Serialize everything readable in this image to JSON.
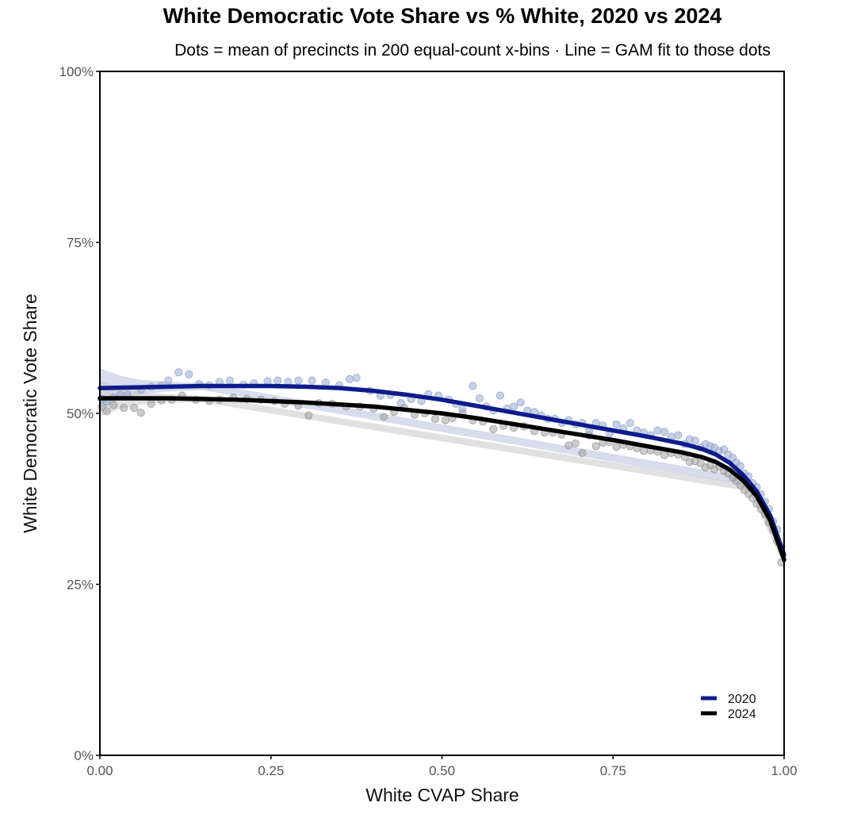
{
  "chart_data": {
    "type": "scatter",
    "title": "White Democratic Vote Share vs % White, 2020 vs 2024",
    "subtitle": "Dots = mean of precincts in 200 equal-count x-bins · Line = GAM fit to those dots",
    "xlabel": "White CVAP Share",
    "ylabel": "White Democratic Vote Share",
    "xlim": [
      0,
      1
    ],
    "ylim": [
      0,
      1
    ],
    "x_ticks": [
      {
        "value": 0,
        "label": "0.00"
      },
      {
        "value": 0.25,
        "label": "0.25"
      },
      {
        "value": 0.5,
        "label": "0.50"
      },
      {
        "value": 0.75,
        "label": "0.75"
      },
      {
        "value": 1,
        "label": "1.00"
      }
    ],
    "y_ticks": [
      {
        "value": 0,
        "label": "0%"
      },
      {
        "value": 0.25,
        "label": "25%"
      },
      {
        "value": 0.5,
        "label": "50%"
      },
      {
        "value": 0.75,
        "label": "75%"
      },
      {
        "value": 1,
        "label": "100%"
      }
    ],
    "grid": false,
    "legend_position": "bottom-right",
    "series": [
      {
        "name": "2020",
        "color": "#0d1c8c",
        "point_color": "#8fa3cc",
        "band_color": "#b9bfdc",
        "fit": [
          [
            0.0,
            0.537
          ],
          [
            0.05,
            0.538
          ],
          [
            0.1,
            0.539
          ],
          [
            0.15,
            0.54
          ],
          [
            0.2,
            0.54
          ],
          [
            0.25,
            0.54
          ],
          [
            0.3,
            0.539
          ],
          [
            0.35,
            0.537
          ],
          [
            0.4,
            0.533
          ],
          [
            0.45,
            0.527
          ],
          [
            0.5,
            0.52
          ],
          [
            0.55,
            0.511
          ],
          [
            0.6,
            0.502
          ],
          [
            0.65,
            0.493
          ],
          [
            0.7,
            0.484
          ],
          [
            0.75,
            0.475
          ],
          [
            0.8,
            0.466
          ],
          [
            0.85,
            0.456
          ],
          [
            0.88,
            0.448
          ],
          [
            0.9,
            0.44
          ],
          [
            0.92,
            0.428
          ],
          [
            0.94,
            0.41
          ],
          [
            0.96,
            0.386
          ],
          [
            0.98,
            0.35
          ],
          [
            1.0,
            0.293
          ]
        ],
        "band": [
          [
            0.0,
            0.509,
            0.566
          ],
          [
            0.03,
            0.521,
            0.555
          ],
          [
            0.06,
            0.528,
            0.549
          ],
          [
            0.1,
            0.532,
            0.546
          ],
          [
            0.15,
            0.534,
            0.545
          ],
          [
            0.95,
            0.394,
            0.406
          ],
          [
            1.0,
            0.284,
            0.302
          ]
        ],
        "points": [
          [
            0.003,
            0.521
          ],
          [
            0.01,
            0.517
          ],
          [
            0.02,
            0.523
          ],
          [
            0.03,
            0.527
          ],
          [
            0.04,
            0.527
          ],
          [
            0.06,
            0.534
          ],
          [
            0.075,
            0.539
          ],
          [
            0.09,
            0.541
          ],
          [
            0.1,
            0.548
          ],
          [
            0.115,
            0.56
          ],
          [
            0.13,
            0.557
          ],
          [
            0.145,
            0.543
          ],
          [
            0.16,
            0.541
          ],
          [
            0.175,
            0.546
          ],
          [
            0.19,
            0.548
          ],
          [
            0.21,
            0.542
          ],
          [
            0.225,
            0.544
          ],
          [
            0.245,
            0.547
          ],
          [
            0.26,
            0.548
          ],
          [
            0.275,
            0.546
          ],
          [
            0.29,
            0.548
          ],
          [
            0.31,
            0.548
          ],
          [
            0.33,
            0.545
          ],
          [
            0.35,
            0.541
          ],
          [
            0.365,
            0.55
          ],
          [
            0.375,
            0.552
          ],
          [
            0.395,
            0.533
          ],
          [
            0.41,
            0.526
          ],
          [
            0.425,
            0.527
          ],
          [
            0.44,
            0.515
          ],
          [
            0.455,
            0.521
          ],
          [
            0.47,
            0.518
          ],
          [
            0.48,
            0.528
          ],
          [
            0.495,
            0.526
          ],
          [
            0.51,
            0.52
          ],
          [
            0.52,
            0.514
          ],
          [
            0.53,
            0.507
          ],
          [
            0.545,
            0.54
          ],
          [
            0.555,
            0.522
          ],
          [
            0.565,
            0.51
          ],
          [
            0.575,
            0.504
          ],
          [
            0.585,
            0.526
          ],
          [
            0.595,
            0.507
          ],
          [
            0.605,
            0.51
          ],
          [
            0.615,
            0.516
          ],
          [
            0.625,
            0.504
          ],
          [
            0.635,
            0.502
          ],
          [
            0.645,
            0.497
          ],
          [
            0.655,
            0.492
          ],
          [
            0.665,
            0.492
          ],
          [
            0.675,
            0.486
          ],
          [
            0.685,
            0.49
          ],
          [
            0.695,
            0.484
          ],
          [
            0.705,
            0.486
          ],
          [
            0.715,
            0.474
          ],
          [
            0.725,
            0.486
          ],
          [
            0.735,
            0.482
          ],
          [
            0.745,
            0.471
          ],
          [
            0.755,
            0.484
          ],
          [
            0.765,
            0.478
          ],
          [
            0.775,
            0.486
          ],
          [
            0.785,
            0.475
          ],
          [
            0.795,
            0.472
          ],
          [
            0.805,
            0.468
          ],
          [
            0.815,
            0.475
          ],
          [
            0.825,
            0.473
          ],
          [
            0.835,
            0.466
          ],
          [
            0.845,
            0.468
          ],
          [
            0.855,
            0.455
          ],
          [
            0.862,
            0.462
          ],
          [
            0.87,
            0.46
          ],
          [
            0.878,
            0.45
          ],
          [
            0.885,
            0.455
          ],
          [
            0.892,
            0.452
          ],
          [
            0.898,
            0.45
          ],
          [
            0.905,
            0.445
          ],
          [
            0.912,
            0.447
          ],
          [
            0.918,
            0.44
          ],
          [
            0.925,
            0.435
          ],
          [
            0.93,
            0.428
          ],
          [
            0.936,
            0.423
          ],
          [
            0.942,
            0.412
          ],
          [
            0.948,
            0.408
          ],
          [
            0.954,
            0.398
          ],
          [
            0.96,
            0.392
          ],
          [
            0.966,
            0.382
          ],
          [
            0.972,
            0.371
          ],
          [
            0.978,
            0.36
          ],
          [
            0.984,
            0.342
          ],
          [
            0.99,
            0.33
          ],
          [
            0.996,
            0.305
          ]
        ]
      },
      {
        "name": "2024",
        "color": "#000000",
        "point_color": "#9a9a9a",
        "band_color": "#c8c8c8",
        "fit": [
          [
            0.0,
            0.522
          ],
          [
            0.05,
            0.522
          ],
          [
            0.1,
            0.522
          ],
          [
            0.15,
            0.521
          ],
          [
            0.2,
            0.52
          ],
          [
            0.25,
            0.518
          ],
          [
            0.3,
            0.516
          ],
          [
            0.35,
            0.513
          ],
          [
            0.4,
            0.51
          ],
          [
            0.45,
            0.505
          ],
          [
            0.5,
            0.5
          ],
          [
            0.55,
            0.493
          ],
          [
            0.6,
            0.485
          ],
          [
            0.65,
            0.477
          ],
          [
            0.7,
            0.469
          ],
          [
            0.75,
            0.461
          ],
          [
            0.8,
            0.452
          ],
          [
            0.85,
            0.443
          ],
          [
            0.88,
            0.436
          ],
          [
            0.9,
            0.429
          ],
          [
            0.92,
            0.418
          ],
          [
            0.94,
            0.402
          ],
          [
            0.96,
            0.379
          ],
          [
            0.98,
            0.343
          ],
          [
            1.0,
            0.286
          ]
        ],
        "band": [
          [
            0.0,
            0.496,
            0.548
          ],
          [
            0.03,
            0.507,
            0.537
          ],
          [
            0.06,
            0.513,
            0.531
          ],
          [
            0.1,
            0.516,
            0.528
          ],
          [
            0.15,
            0.516,
            0.526
          ],
          [
            0.95,
            0.386,
            0.396
          ],
          [
            1.0,
            0.277,
            0.295
          ]
        ],
        "points": [
          [
            0.003,
            0.51
          ],
          [
            0.01,
            0.503
          ],
          [
            0.02,
            0.512
          ],
          [
            0.035,
            0.508
          ],
          [
            0.05,
            0.508
          ],
          [
            0.06,
            0.501
          ],
          [
            0.075,
            0.514
          ],
          [
            0.09,
            0.519
          ],
          [
            0.105,
            0.52
          ],
          [
            0.12,
            0.526
          ],
          [
            0.14,
            0.52
          ],
          [
            0.16,
            0.518
          ],
          [
            0.175,
            0.52
          ],
          [
            0.195,
            0.523
          ],
          [
            0.215,
            0.521
          ],
          [
            0.235,
            0.52
          ],
          [
            0.255,
            0.518
          ],
          [
            0.27,
            0.514
          ],
          [
            0.29,
            0.511
          ],
          [
            0.305,
            0.497
          ],
          [
            0.32,
            0.515
          ],
          [
            0.34,
            0.514
          ],
          [
            0.36,
            0.51
          ],
          [
            0.38,
            0.51
          ],
          [
            0.4,
            0.507
          ],
          [
            0.415,
            0.495
          ],
          [
            0.43,
            0.502
          ],
          [
            0.445,
            0.508
          ],
          [
            0.46,
            0.498
          ],
          [
            0.475,
            0.5
          ],
          [
            0.49,
            0.492
          ],
          [
            0.505,
            0.49
          ],
          [
            0.515,
            0.493
          ],
          [
            0.53,
            0.5
          ],
          [
            0.545,
            0.49
          ],
          [
            0.56,
            0.488
          ],
          [
            0.575,
            0.477
          ],
          [
            0.59,
            0.482
          ],
          [
            0.605,
            0.479
          ],
          [
            0.62,
            0.481
          ],
          [
            0.635,
            0.474
          ],
          [
            0.65,
            0.472
          ],
          [
            0.662,
            0.472
          ],
          [
            0.675,
            0.469
          ],
          [
            0.685,
            0.453
          ],
          [
            0.695,
            0.456
          ],
          [
            0.705,
            0.442
          ],
          [
            0.715,
            0.468
          ],
          [
            0.725,
            0.452
          ],
          [
            0.735,
            0.457
          ],
          [
            0.745,
            0.458
          ],
          [
            0.755,
            0.451
          ],
          [
            0.765,
            0.454
          ],
          [
            0.775,
            0.452
          ],
          [
            0.785,
            0.449
          ],
          [
            0.795,
            0.445
          ],
          [
            0.805,
            0.446
          ],
          [
            0.815,
            0.444
          ],
          [
            0.825,
            0.439
          ],
          [
            0.835,
            0.442
          ],
          [
            0.845,
            0.44
          ],
          [
            0.855,
            0.436
          ],
          [
            0.862,
            0.429
          ],
          [
            0.87,
            0.43
          ],
          [
            0.878,
            0.427
          ],
          [
            0.885,
            0.421
          ],
          [
            0.892,
            0.424
          ],
          [
            0.898,
            0.418
          ],
          [
            0.905,
            0.422
          ],
          [
            0.912,
            0.416
          ],
          [
            0.918,
            0.412
          ],
          [
            0.925,
            0.406
          ],
          [
            0.93,
            0.401
          ],
          [
            0.936,
            0.395
          ],
          [
            0.942,
            0.388
          ],
          [
            0.948,
            0.382
          ],
          [
            0.954,
            0.376
          ],
          [
            0.96,
            0.368
          ],
          [
            0.966,
            0.36
          ],
          [
            0.972,
            0.352
          ],
          [
            0.978,
            0.34
          ],
          [
            0.984,
            0.33
          ],
          [
            0.99,
            0.313
          ],
          [
            0.996,
            0.282
          ]
        ]
      }
    ]
  }
}
